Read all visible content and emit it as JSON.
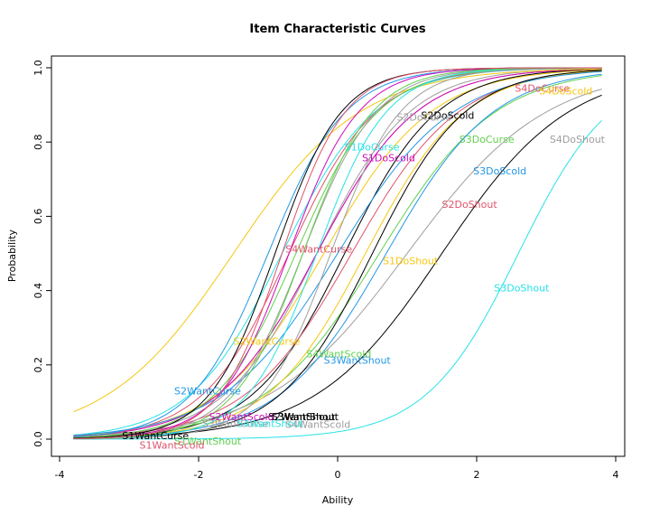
{
  "chart_data": {
    "type": "line",
    "title": "Item Characteristic Curves",
    "xlabel": "Ability",
    "ylabel": "Probability",
    "xlim": [
      -3.8,
      3.8
    ],
    "ylim": [
      0,
      1
    ],
    "x_ticks": [
      -4,
      -2,
      0,
      2,
      4
    ],
    "y_ticks": [
      0.0,
      0.2,
      0.4,
      0.6,
      0.8,
      1.0
    ],
    "y_tick_labels": [
      "0.0",
      "0.2",
      "0.4",
      "0.6",
      "0.8",
      "1.0"
    ],
    "grid": false,
    "legend": "none (curves labeled directly)",
    "curve_model": "logistic: p = 1 / (1 + exp(-a * (x - b)))",
    "series": [
      {
        "name": "S4DoCurse",
        "a": 1.4,
        "b": -0.3,
        "color": "#DF536B",
        "label_x": 2.55,
        "label_y": 0.943
      },
      {
        "name": "S4DoScold",
        "a": 1.3,
        "b": -0.2,
        "color": "#F5C710",
        "label_x": 2.9,
        "label_y": 0.935
      },
      {
        "name": "S2DoScold",
        "a": 1.5,
        "b": 0.1,
        "color": "#000000",
        "label_x": 1.2,
        "label_y": 0.87
      },
      {
        "name": "S2DoCurse",
        "a": 1.5,
        "b": -0.3,
        "color": "#9E9E9E",
        "label_x": 0.85,
        "label_y": 0.865
      },
      {
        "name": "S3DoCurse",
        "a": 1.2,
        "b": 0.6,
        "color": "#61D04F",
        "label_x": 1.75,
        "label_y": 0.805
      },
      {
        "name": "S4DoShout",
        "a": 1.0,
        "b": 1.0,
        "color": "#9E9E9E",
        "label_x": 3.05,
        "label_y": 0.805
      },
      {
        "name": "S1DoCurse",
        "a": 1.5,
        "b": -0.8,
        "color": "#28E2E5",
        "label_x": 0.1,
        "label_y": 0.785
      },
      {
        "name": "S1DoScold",
        "a": 1.4,
        "b": -0.3,
        "color": "#CD0BBC",
        "label_x": 0.35,
        "label_y": 0.755
      },
      {
        "name": "S3DoScold",
        "a": 1.3,
        "b": 0.7,
        "color": "#2297E6",
        "label_x": 1.95,
        "label_y": 0.72
      },
      {
        "name": "S2DoShout",
        "a": 1.3,
        "b": 0.2,
        "color": "#DF536B",
        "label_x": 1.5,
        "label_y": 0.63
      },
      {
        "name": "S4WantCurse",
        "a": 1.6,
        "b": -0.7,
        "color": "#DF536B",
        "label_x": -0.75,
        "label_y": 0.51
      },
      {
        "name": "S1DoShout",
        "a": 1.4,
        "b": 0.4,
        "color": "#F5C710",
        "label_x": 0.65,
        "label_y": 0.478
      },
      {
        "name": "S3DoShout",
        "a": 1.5,
        "b": 2.6,
        "color": "#28E2E5",
        "label_x": 2.25,
        "label_y": 0.405
      },
      {
        "name": "S2WantCurse",
        "a": 1.1,
        "b": -1.5,
        "color": "#F5C710",
        "label_x": -1.5,
        "label_y": 0.262
      },
      {
        "name": "S4WantScold",
        "a": 1.7,
        "b": -0.6,
        "color": "#61D04F",
        "label_x": -0.45,
        "label_y": 0.228
      },
      {
        "name": "S3WantShout",
        "a": 1.2,
        "b": 0.0,
        "color": "#2297E6",
        "label_x": -0.2,
        "label_y": 0.21
      },
      {
        "name": "S2WantCurse",
        "a": 1.8,
        "b": -1.0,
        "color": "#2297E6",
        "label_x": -2.35,
        "label_y": 0.128
      },
      {
        "name": "S2WantShout",
        "a": 1.1,
        "b": 1.5,
        "color": "#000000",
        "label_x": -1.0,
        "label_y": 0.058
      },
      {
        "name": "S2WantScold",
        "a": 2.0,
        "b": -0.7,
        "color": "#CD0BBC",
        "label_x": -1.85,
        "label_y": 0.058
      },
      {
        "name": "S3WantShout",
        "a": 1.5,
        "b": 0.5,
        "color": "#000000",
        "label_x": -0.95,
        "label_y": 0.058
      },
      {
        "name": "S3WantCurse",
        "a": 1.9,
        "b": -0.5,
        "color": "#9E9E9E",
        "label_x": -1.95,
        "label_y": 0.04
      },
      {
        "name": "S4WantShout",
        "a": 2.0,
        "b": -0.3,
        "color": "#28E2E5",
        "label_x": -1.45,
        "label_y": 0.04
      },
      {
        "name": "S4WantScold",
        "a": 2.0,
        "b": -0.1,
        "color": "#9E9E9E",
        "label_x": -0.75,
        "label_y": 0.038
      },
      {
        "name": "S1WantCurse",
        "a": 2.1,
        "b": -0.9,
        "color": "#000000",
        "label_x": -3.1,
        "label_y": 0.007
      },
      {
        "name": "S1WantShout",
        "a": 2.0,
        "b": -0.5,
        "color": "#61D04F",
        "label_x": -2.35,
        "label_y": -0.007
      },
      {
        "name": "S1WantScold",
        "a": 2.2,
        "b": -0.8,
        "color": "#DF536B",
        "label_x": -2.85,
        "label_y": -0.018
      }
    ]
  }
}
